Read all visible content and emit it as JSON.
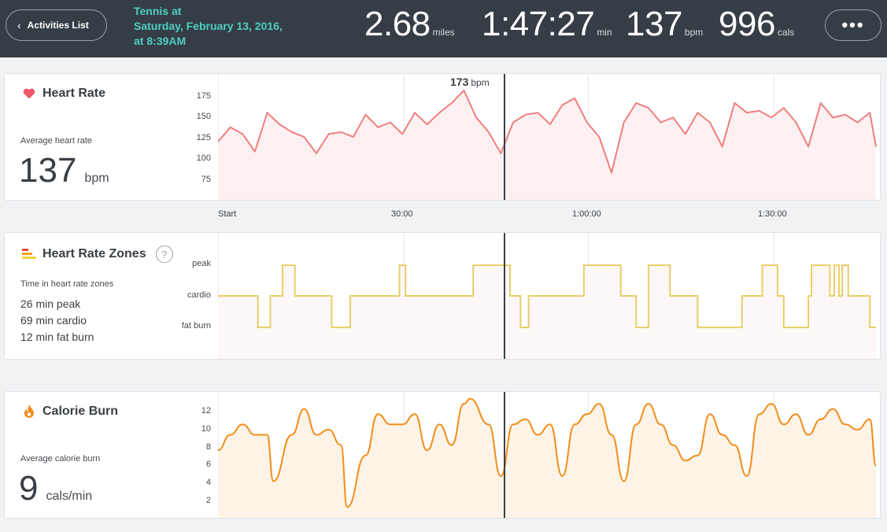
{
  "header": {
    "back_label": "Activities List",
    "title_line1": "Tennis at",
    "title_line2": "Saturday, February 13, 2016,",
    "title_line3": "at 8:39AM",
    "stats": [
      {
        "value": "2.68",
        "unit": "miles"
      },
      {
        "value": "1:47:27",
        "unit": "min"
      },
      {
        "value": "137",
        "unit": "bpm"
      },
      {
        "value": "996",
        "unit": "cals"
      }
    ],
    "more_label": "•••"
  },
  "cursor": {
    "value": "173",
    "unit": "bpm"
  },
  "x_axis": {
    "ticks": [
      "Start",
      "30:00",
      "1:00:00",
      "1:30:00"
    ]
  },
  "heart_rate": {
    "title": "Heart Rate",
    "avg_label": "Average heart rate",
    "avg_value": "137",
    "avg_unit": "bpm",
    "y_ticks": [
      "175",
      "150",
      "125",
      "100",
      "75"
    ],
    "color": "#f07e7e",
    "fill": "#fdf0f0"
  },
  "zones": {
    "title": "Heart Rate Zones",
    "help": "?",
    "label": "Time in heart rate zones",
    "items": [
      "26 min peak",
      "69 min cardio",
      "12 min fat burn"
    ],
    "levels": [
      "peak",
      "cardio",
      "fat burn"
    ],
    "color": "#e8cf6a"
  },
  "calories": {
    "title": "Calorie Burn",
    "avg_label": "Average calorie burn",
    "avg_value": "9",
    "avg_unit": "cals/min",
    "y_ticks": [
      "12",
      "10",
      "8",
      "6",
      "4",
      "2"
    ],
    "color": "#f28d1a",
    "fill": "#fdf3e6"
  },
  "chart_data": [
    {
      "type": "line",
      "title": "Heart Rate",
      "x": [
        0,
        2,
        4,
        6,
        8,
        10,
        12,
        14,
        16,
        18,
        20,
        22,
        24,
        26,
        28,
        30,
        32,
        34,
        36,
        38,
        40,
        42,
        44,
        46,
        48,
        50,
        52,
        54,
        56,
        58,
        60,
        62,
        64,
        66,
        68,
        70,
        72,
        74,
        76,
        78,
        80,
        82,
        84,
        86,
        88,
        90,
        92,
        94,
        96,
        98,
        100,
        102,
        104,
        106,
        107
      ],
      "values": [
        120,
        135,
        128,
        110,
        150,
        138,
        130,
        125,
        108,
        128,
        130,
        125,
        148,
        135,
        140,
        128,
        150,
        138,
        150,
        160,
        173,
        145,
        130,
        108,
        140,
        148,
        150,
        138,
        158,
        165,
        140,
        125,
        88,
        140,
        160,
        155,
        140,
        145,
        128,
        150,
        140,
        115,
        160,
        150,
        152,
        145,
        155,
        140,
        115,
        160,
        145,
        148,
        140,
        150,
        115
      ],
      "xlabel": "",
      "ylabel": "",
      "ylim": [
        60,
        190
      ],
      "y_ticks": [
        75,
        100,
        125,
        150,
        175
      ],
      "x_ticks": [
        "Start",
        "30:00",
        "1:00:00",
        "1:30:00"
      ]
    },
    {
      "type": "line",
      "title": "Heart Rate Zones",
      "categories": [
        "fat burn",
        "cardio",
        "peak"
      ],
      "x": [
        0,
        6.5,
        8.5,
        10.5,
        12.5,
        18.5,
        21.5,
        29.5,
        30.5,
        41.5,
        47.5,
        47.8,
        48.7,
        49.2,
        50.5,
        52.5,
        59.5,
        65.5,
        68,
        70,
        73.5,
        78,
        85.2,
        88.5,
        91,
        92,
        96,
        96.5,
        99.5,
        100.2,
        101,
        101.5,
        102.5,
        106,
        107
      ],
      "values": [
        1,
        0,
        1,
        2,
        1,
        0,
        1,
        2,
        1,
        2,
        1,
        1,
        1,
        0,
        1,
        1,
        2,
        1,
        0,
        2,
        1,
        0,
        1,
        2,
        1,
        0,
        1,
        2,
        1,
        2,
        1,
        2,
        1,
        0,
        0
      ],
      "y_ticks": [
        "peak",
        "cardio",
        "fat burn"
      ]
    },
    {
      "type": "area",
      "title": "Calorie Burn",
      "x": [
        0,
        2,
        4,
        6,
        8,
        9,
        12,
        14,
        16,
        18,
        20,
        21,
        24,
        26,
        28,
        30,
        32,
        34,
        36,
        38,
        40,
        41,
        44,
        46,
        48,
        50,
        52,
        54,
        56,
        58,
        60,
        62,
        64,
        66,
        68,
        70,
        72,
        74,
        76,
        78,
        80,
        82,
        84,
        86,
        88,
        90,
        92,
        94,
        96,
        98,
        100,
        102,
        104,
        106,
        107
      ],
      "values": [
        7.5,
        9,
        10,
        9,
        9,
        4.5,
        9,
        11.5,
        9,
        9.5,
        8,
        2,
        7,
        11,
        10,
        10,
        11,
        7.5,
        10,
        8,
        12,
        12.5,
        10,
        5,
        10,
        10.5,
        9,
        10,
        5,
        10,
        11,
        12,
        9,
        4.5,
        10,
        12,
        10,
        8,
        6.5,
        7,
        11,
        9,
        8,
        5,
        11,
        12,
        10,
        11,
        9,
        10.5,
        11.5,
        10,
        9.5,
        10.5,
        6
      ],
      "xlabel": "",
      "ylabel": "",
      "ylim": [
        0.8,
        13
      ],
      "y_ticks": [
        2,
        4,
        6,
        8,
        10,
        12
      ]
    }
  ]
}
